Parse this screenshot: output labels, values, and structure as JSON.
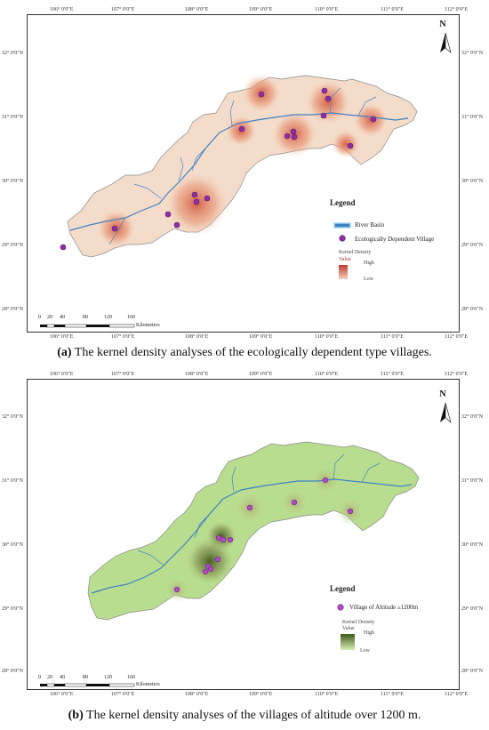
{
  "map_a": {
    "lon_labels": [
      "106° 0′0″E",
      "107° 0′0″E",
      "108° 0′0″E",
      "109° 0′0″E",
      "110° 0′0″E",
      "111° 0′0″E",
      "112° 0′0″E"
    ],
    "lat_labels": [
      "32° 0′0″N",
      "31° 0′0″N",
      "30° 0′0″N",
      "29° 0′0″N",
      "28° 0′0″N"
    ],
    "north": "N",
    "legend": {
      "title": "Legend",
      "river": "River Basin",
      "village": "Ecologically Dependent Village",
      "kd_title": "Kernel Density",
      "kd_value": "Value",
      "high": "High",
      "low": "Low",
      "ramp_colors": [
        "#c0392b",
        "#f3d3c0"
      ]
    },
    "scale": {
      "ticks": [
        "0",
        "20",
        "40",
        "80",
        "120",
        "160"
      ],
      "unit": "Kilometers"
    },
    "caption_label": "(a)",
    "caption_text": " The kernel density analyses of the ecologically dependent type villages."
  },
  "map_b": {
    "lon_labels": [
      "106° 0′0″E",
      "107° 0′0″E",
      "108° 0′0″E",
      "109° 0′0″E",
      "110° 0′0″E",
      "111° 0′0″E",
      "112° 0′0″E"
    ],
    "lat_labels": [
      "32° 0′0″N",
      "31° 0′0″N",
      "30° 0′0″N",
      "29° 0′0″N",
      "28° 0′0″N"
    ],
    "north": "N",
    "legend": {
      "title": "Legend",
      "village": "Village of Altitude ≥1200m",
      "kd_title": "Kernel Density",
      "kd_value": "Value",
      "high": "High",
      "low": "Low",
      "ramp_colors": [
        "#3e5a1f",
        "#d8ecb0"
      ]
    },
    "scale": {
      "ticks": [
        "0",
        "20",
        "40",
        "80",
        "120",
        "160"
      ],
      "unit": "Kilometers"
    },
    "caption_label": "(b)",
    "caption_text": " The kernel density analyses of the villages of altitude over 1200 m."
  },
  "colors": {
    "region_a": "#f4dccb",
    "region_b": "#b9dd8e",
    "river": "#3f82c4",
    "village": "#8e2fa8"
  }
}
